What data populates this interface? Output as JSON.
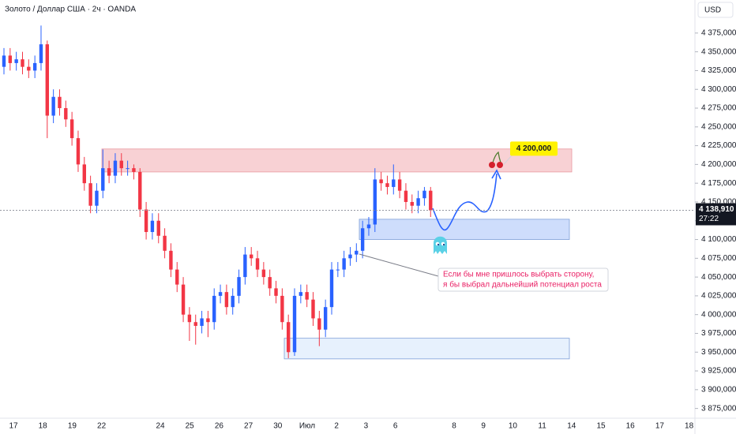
{
  "chart_data": {
    "type": "candlestick",
    "title": "Золото / Доллар США · 2ч · OANDA",
    "currency": "USD",
    "up_color": "#2962ff",
    "down_color": "#f23645",
    "ylim": [
      3862,
      4419
    ],
    "yticks": [
      {
        "value": 4375,
        "label": "4 375,000"
      },
      {
        "value": 4350,
        "label": "4 350,000"
      },
      {
        "value": 4325,
        "label": "4 325,000"
      },
      {
        "value": 4300,
        "label": "4 300,000"
      },
      {
        "value": 4275,
        "label": "4 275,000"
      },
      {
        "value": 4250,
        "label": "4 250,000"
      },
      {
        "value": 4225,
        "label": "4 225,000"
      },
      {
        "value": 4200,
        "label": "4 200,000"
      },
      {
        "value": 4175,
        "label": "4 175,000"
      },
      {
        "value": 4150,
        "label": "4 150,000"
      },
      {
        "value": 4125,
        "label": "4 125,000"
      },
      {
        "value": 4100,
        "label": "4 100,000"
      },
      {
        "value": 4075,
        "label": "4 075,000"
      },
      {
        "value": 4050,
        "label": "4 050,000"
      },
      {
        "value": 4025,
        "label": "4 025,000"
      },
      {
        "value": 4000,
        "label": "4 000,000"
      },
      {
        "value": 3975,
        "label": "3 975,000"
      },
      {
        "value": 3950,
        "label": "3 950,000"
      },
      {
        "value": 3925,
        "label": "3 925,000"
      },
      {
        "value": 3900,
        "label": "3 900,000"
      },
      {
        "value": 3875,
        "label": "3 875,000"
      }
    ],
    "x_tick_labels": [
      "17",
      "18",
      "19",
      "22",
      null,
      "24",
      "25",
      "26",
      "27",
      "30",
      "Июл",
      "2",
      "3",
      "6",
      null,
      "8",
      "9",
      "10",
      "11",
      "14",
      "15",
      "16",
      "17",
      "18"
    ],
    "open": [
      4330,
      4345,
      4335,
      4340,
      4330,
      4325,
      4335,
      4360,
      4265,
      4290,
      4275,
      4260,
      4235,
      4200,
      4175,
      4145,
      4165,
      4195,
      4185,
      4205,
      4195,
      4195,
      4190,
      4140,
      4110,
      4125,
      4105,
      4085,
      4060,
      4040,
      4000,
      3990,
      3985,
      3995,
      3990,
      4025,
      4030,
      4010,
      4025,
      4050,
      4080,
      4075,
      4060,
      4050,
      4035,
      4025,
      3990,
      3950,
      4025,
      4030,
      4020,
      3995,
      3980,
      4010,
      4060,
      4060,
      4075,
      4080,
      4085,
      4115,
      4120,
      4180,
      4175,
      4170,
      4180,
      4165,
      4150,
      4145,
      4155,
      4165
    ],
    "high": [
      4355,
      4355,
      4350,
      4350,
      4340,
      4345,
      4385,
      4365,
      4300,
      4300,
      4285,
      4270,
      4245,
      4210,
      4185,
      4175,
      4220,
      4205,
      4215,
      4215,
      4205,
      4200,
      4195,
      4150,
      4135,
      4135,
      4115,
      4095,
      4070,
      4050,
      4010,
      4000,
      4005,
      4005,
      4035,
      4040,
      4040,
      4035,
      4060,
      4090,
      4090,
      4085,
      4070,
      4060,
      4045,
      4035,
      4000,
      4035,
      4040,
      4040,
      4030,
      4005,
      4020,
      4070,
      4070,
      4085,
      4090,
      4095,
      4125,
      4130,
      4195,
      4190,
      4185,
      4200,
      4190,
      4175,
      4160,
      4165,
      4170,
      4170
    ],
    "low": [
      4320,
      4325,
      4325,
      4320,
      4315,
      4315,
      4325,
      4235,
      4255,
      4265,
      4250,
      4225,
      4190,
      4165,
      4135,
      4135,
      4155,
      4175,
      4175,
      4185,
      4185,
      4180,
      4130,
      4100,
      4100,
      4095,
      4075,
      4050,
      4030,
      3990,
      3965,
      3960,
      3975,
      3970,
      3980,
      4015,
      4000,
      4000,
      4015,
      4040,
      4065,
      4050,
      4040,
      4025,
      4015,
      3980,
      3942,
      3945,
      4015,
      4010,
      3985,
      3958,
      3970,
      4000,
      4050,
      4050,
      4065,
      4070,
      4075,
      4105,
      4110,
      4165,
      4160,
      4160,
      4155,
      4140,
      4135,
      4135,
      4145,
      4130
    ],
    "close": [
      4345,
      4335,
      4340,
      4330,
      4325,
      4335,
      4360,
      4265,
      4290,
      4275,
      4260,
      4235,
      4200,
      4175,
      4145,
      4165,
      4195,
      4185,
      4205,
      4195,
      4195,
      4190,
      4140,
      4110,
      4125,
      4105,
      4085,
      4060,
      4040,
      4000,
      3990,
      3985,
      3995,
      3990,
      4025,
      4030,
      4010,
      4025,
      4050,
      4080,
      4075,
      4060,
      4050,
      4035,
      4025,
      3990,
      3950,
      4025,
      4030,
      4020,
      3995,
      3980,
      4010,
      4060,
      4060,
      4075,
      4080,
      4085,
      4115,
      4120,
      4180,
      4175,
      4170,
      4180,
      4165,
      4150,
      4145,
      4155,
      4165,
      4138.91
    ],
    "zones": [
      {
        "top": 4220.6,
        "bottom": 4190,
        "color": "#f7c9cc"
      },
      {
        "top": 4127,
        "bottom": 4100,
        "color": "#c5d7fb"
      },
      {
        "top": 3968.5,
        "bottom": 3941,
        "color": "#e3eefd"
      }
    ],
    "last_price": {
      "value": 4138.91,
      "label": "4 138,910"
    },
    "countdown": "27:22",
    "target": {
      "value": 4200,
      "label": "4 200,000"
    },
    "annotation": [
      "Если бы мне пришлось выбрать сторону,",
      "я бы выбрал дальнейший потенциал роста"
    ]
  }
}
